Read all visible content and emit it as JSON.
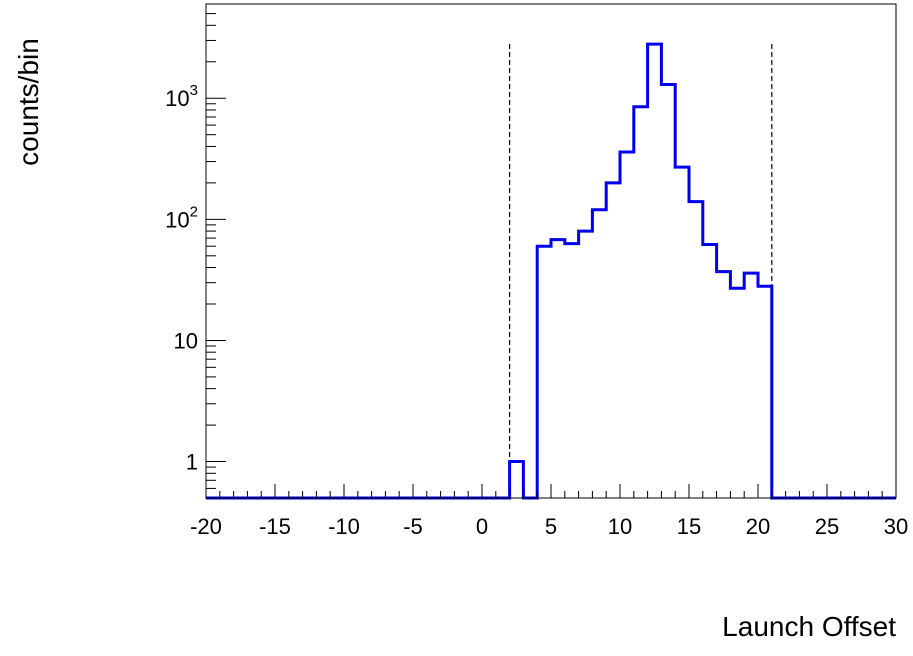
{
  "chart_data": {
    "type": "histogram",
    "xlabel": "Launch Offset",
    "ylabel": "counts/bin",
    "x_range": [
      -20,
      30
    ],
    "y_scale": "log",
    "y_range": [
      0.5,
      6000
    ],
    "bin_width": 1,
    "x_ticks": [
      {
        "value": -20,
        "label": "-20"
      },
      {
        "value": -15,
        "label": "-15"
      },
      {
        "value": -10,
        "label": "-10"
      },
      {
        "value": -5,
        "label": "-5"
      },
      {
        "value": 0,
        "label": "0"
      },
      {
        "value": 5,
        "label": "5"
      },
      {
        "value": 10,
        "label": "10"
      },
      {
        "value": 15,
        "label": "15"
      },
      {
        "value": 20,
        "label": "20"
      },
      {
        "value": 25,
        "label": "25"
      },
      {
        "value": 30,
        "label": "30"
      }
    ],
    "y_ticks": [
      {
        "value": 1,
        "base": "1",
        "exp": ""
      },
      {
        "value": 10,
        "base": "10",
        "exp": ""
      },
      {
        "value": 100,
        "base": "10",
        "exp": "2"
      },
      {
        "value": 1000,
        "base": "10",
        "exp": "3"
      }
    ],
    "series": [
      {
        "color": "#0000ee",
        "bins": [
          {
            "x_low": 2,
            "count": 1
          },
          {
            "x_low": 3,
            "count": 0
          },
          {
            "x_low": 4,
            "count": 60
          },
          {
            "x_low": 5,
            "count": 68
          },
          {
            "x_low": 6,
            "count": 63
          },
          {
            "x_low": 7,
            "count": 80
          },
          {
            "x_low": 8,
            "count": 120
          },
          {
            "x_low": 9,
            "count": 200
          },
          {
            "x_low": 10,
            "count": 360
          },
          {
            "x_low": 11,
            "count": 850
          },
          {
            "x_low": 12,
            "count": 2800
          },
          {
            "x_low": 13,
            "count": 1300
          },
          {
            "x_low": 14,
            "count": 270
          },
          {
            "x_low": 15,
            "count": 140
          },
          {
            "x_low": 16,
            "count": 62
          },
          {
            "x_low": 17,
            "count": 37
          },
          {
            "x_low": 18,
            "count": 27
          },
          {
            "x_low": 19,
            "count": 36
          },
          {
            "x_low": 20,
            "count": 28
          }
        ]
      }
    ],
    "cut_lines": [
      2,
      21
    ],
    "grid": false,
    "legend": "none"
  }
}
